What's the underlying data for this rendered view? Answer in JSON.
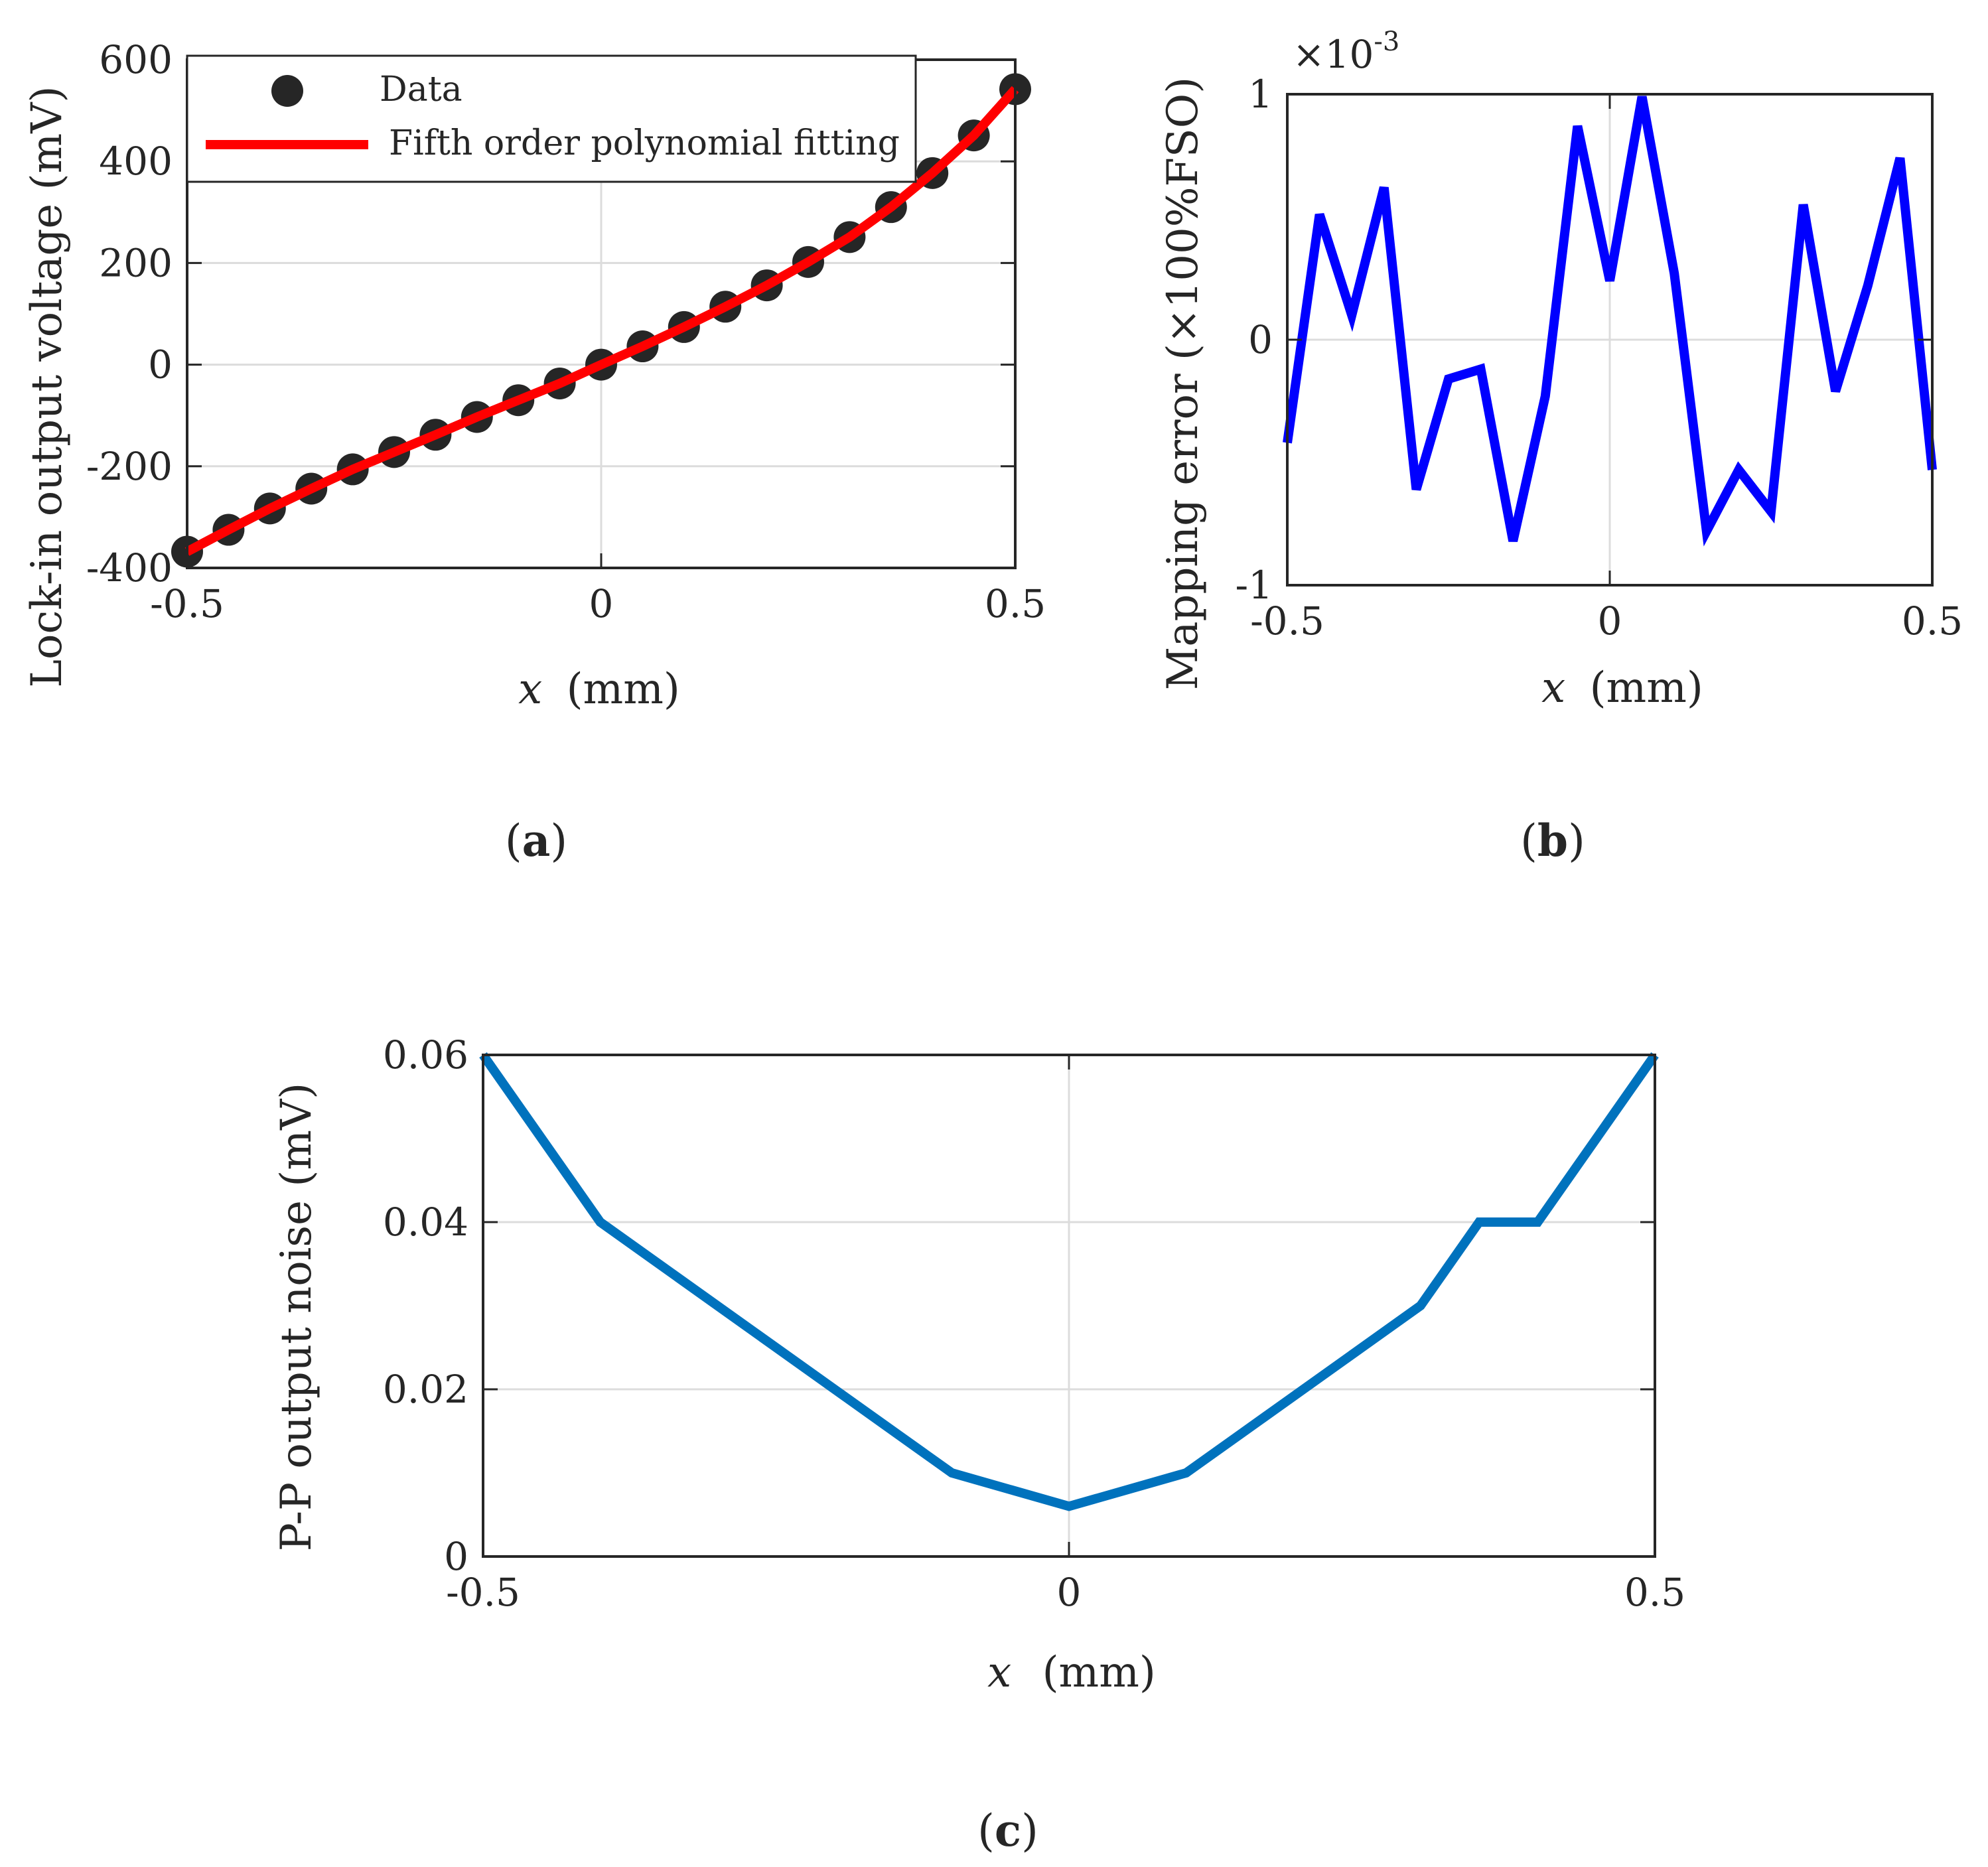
{
  "figure": {
    "panel_labels": {
      "a_open": "(",
      "a_letter": "a",
      "a_close": ")",
      "b_open": "(",
      "b_letter": "b",
      "b_close": ")",
      "c_open": "(",
      "c_letter": "c",
      "c_close": ")"
    }
  },
  "colors": {
    "axis": "#262626",
    "grid": "#dcdcdc",
    "data_marker": "#262626",
    "fit_line": "#ff0000",
    "error_line": "#0000ff",
    "noise_line": "#0072bd"
  },
  "chart_data": [
    {
      "id": "a",
      "type": "scatter",
      "title": "",
      "xlabel_var": "x",
      "xlabel_unit": "(mm)",
      "ylabel": "Lock-in output voltage  (mV)",
      "xlim": [
        -0.5,
        0.5
      ],
      "ylim": [
        -400,
        600
      ],
      "xticks": [
        -0.5,
        0,
        0.5
      ],
      "xtick_labels": [
        "-0.5",
        "0",
        "0.5"
      ],
      "yticks": [
        -400,
        -200,
        0,
        200,
        400,
        600
      ],
      "ytick_labels": [
        "-400",
        "-200",
        "0",
        "200",
        "400",
        "600"
      ],
      "grid": true,
      "legend_position": "top-left",
      "legend": [
        "Data",
        "Fifth order polynomial fitting"
      ],
      "series": [
        {
          "name": "Data",
          "kind": "markers",
          "x": [
            -0.5,
            -0.45,
            -0.4,
            -0.35,
            -0.3,
            -0.25,
            -0.2,
            -0.15,
            -0.1,
            -0.05,
            0,
            0.05,
            0.1,
            0.15,
            0.2,
            0.25,
            0.3,
            0.35,
            0.4,
            0.45,
            0.5
          ],
          "y": [
            -368,
            -325,
            -283,
            -244,
            -206,
            -172,
            -138,
            -103,
            -70,
            -37,
            0,
            36,
            74,
            114,
            156,
            202,
            251,
            310,
            377,
            451,
            542
          ]
        },
        {
          "name": "Fifth order polynomial fitting",
          "kind": "line",
          "x": [
            -0.5,
            -0.45,
            -0.4,
            -0.35,
            -0.3,
            -0.25,
            -0.2,
            -0.15,
            -0.1,
            -0.05,
            0,
            0.05,
            0.1,
            0.15,
            0.2,
            0.25,
            0.3,
            0.35,
            0.4,
            0.45,
            0.5
          ],
          "y": [
            -368,
            -325,
            -283,
            -244,
            -206,
            -172,
            -138,
            -103,
            -70,
            -37,
            0,
            36,
            74,
            114,
            156,
            202,
            251,
            310,
            377,
            451,
            542
          ]
        }
      ]
    },
    {
      "id": "b",
      "type": "line",
      "title": "",
      "xlabel_var": "x",
      "xlabel_unit": "(mm)",
      "ylabel": "Mapping error  (×100%FSO)",
      "y_exponent_base": "×10",
      "y_exponent_power": "-3",
      "xlim": [
        -0.5,
        0.5
      ],
      "ylim": [
        -1,
        1
      ],
      "xticks": [
        -0.5,
        0,
        0.5
      ],
      "xtick_labels": [
        "-0.5",
        "0",
        "0.5"
      ],
      "yticks": [
        -1,
        0,
        1
      ],
      "ytick_labels": [
        "-1",
        "0",
        "1"
      ],
      "grid": true,
      "series": [
        {
          "name": "Mapping error",
          "x": [
            -0.5,
            -0.45,
            -0.4,
            -0.35,
            -0.3,
            -0.25,
            -0.2,
            -0.15,
            -0.1,
            -0.05,
            0,
            0.05,
            0.1,
            0.15,
            0.2,
            0.25,
            0.3,
            0.35,
            0.4,
            0.45,
            0.5
          ],
          "y": [
            -0.42,
            0.51,
            0.1,
            0.62,
            -0.61,
            -0.16,
            -0.12,
            -0.82,
            -0.23,
            0.87,
            0.24,
            0.99,
            0.27,
            -0.78,
            -0.53,
            -0.7,
            0.55,
            -0.21,
            0.22,
            0.74,
            -0.53
          ]
        }
      ]
    },
    {
      "id": "c",
      "type": "line",
      "title": "",
      "xlabel_var": "x",
      "xlabel_unit": "(mm)",
      "ylabel": "P-P output noise (mV)",
      "xlim": [
        -0.5,
        0.5
      ],
      "ylim": [
        0,
        0.06
      ],
      "xticks": [
        -0.5,
        0,
        0.5
      ],
      "xtick_labels": [
        "-0.5",
        "0",
        "0.5"
      ],
      "yticks": [
        0,
        0.02,
        0.04,
        0.06
      ],
      "ytick_labels": [
        "0",
        "0.02",
        "0.04",
        "0.06"
      ],
      "grid": true,
      "series": [
        {
          "name": "P-P output noise",
          "x": [
            -0.5,
            -0.4,
            -0.1,
            0,
            0.1,
            0.3,
            0.35,
            0.4,
            0.5
          ],
          "y": [
            0.06,
            0.04,
            0.01,
            0.006,
            0.01,
            0.03,
            0.04,
            0.04,
            0.06
          ]
        }
      ]
    }
  ]
}
